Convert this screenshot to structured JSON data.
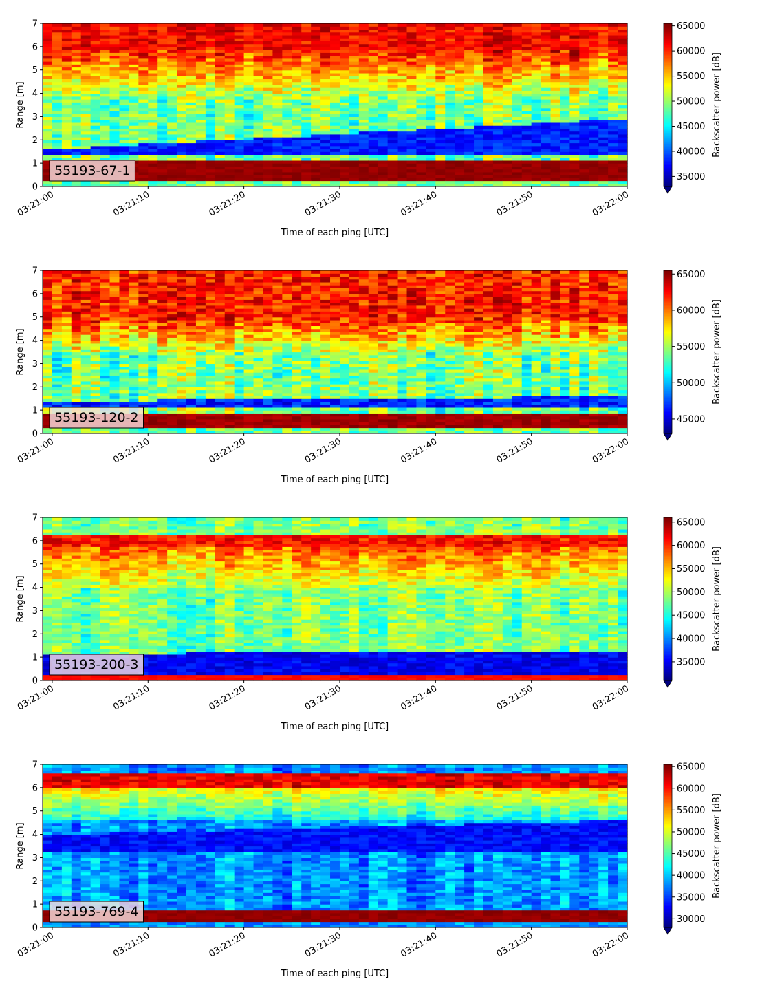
{
  "chart_data": [
    {
      "type": "heatmap",
      "panel_label": "55193-67-1",
      "xlabel": "Time of each ping [UTC]",
      "ylabel": "Range [m]",
      "colorbar_label": "Backscatter power [dB]",
      "colormap": "jet",
      "xlim": [
        "03:20:59",
        "03:22:00"
      ],
      "ylim": [
        0,
        7
      ],
      "x_ticks": [
        "03:21:00",
        "03:21:10",
        "03:21:20",
        "03:21:30",
        "03:21:40",
        "03:21:50",
        "03:22:00"
      ],
      "y_ticks": [
        0,
        1,
        2,
        3,
        4,
        5,
        6,
        7
      ],
      "color_range": [
        33000,
        65500
      ],
      "colorbar_ticks": [
        35000,
        40000,
        45000,
        50000,
        55000,
        60000,
        65000
      ],
      "colorbar_extend": "min",
      "pattern": {
        "bottom_band": [
          0.2,
          1.15,
          65500
        ],
        "upper_band": [
          5.9,
          7.0,
          64000
        ],
        "dark_layer": {
          "lower_m": 1.4,
          "upper_start_m": 1.6,
          "upper_end_m": 2.9,
          "value": 36000
        },
        "mid_mean": 49000,
        "mid_noise": 7000,
        "top_gradient": [
          3.8,
          5.9,
          50000,
          61000
        ]
      }
    },
    {
      "type": "heatmap",
      "panel_label": "55193-120-2",
      "xlabel": "Time of each ping [UTC]",
      "ylabel": "Range [m]",
      "colorbar_label": "Backscatter power [dB]",
      "colormap": "jet",
      "xlim": [
        "03:20:59",
        "03:22:00"
      ],
      "ylim": [
        0,
        7
      ],
      "x_ticks": [
        "03:21:00",
        "03:21:10",
        "03:21:20",
        "03:21:30",
        "03:21:40",
        "03:21:50",
        "03:22:00"
      ],
      "y_ticks": [
        0,
        1,
        2,
        3,
        4,
        5,
        6,
        7
      ],
      "color_range": [
        43000,
        65500
      ],
      "colorbar_ticks": [
        45000,
        50000,
        55000,
        60000,
        65000
      ],
      "colorbar_extend": "min",
      "pattern": {
        "bottom_band": [
          0.2,
          0.85,
          65500
        ],
        "upper_band": [
          5.0,
          7.0,
          64500
        ],
        "dark_layer": {
          "lower_m": 1.15,
          "upper_start_m": 1.4,
          "upper_end_m": 1.6,
          "value": 44500
        },
        "mid_mean": 54000,
        "mid_noise": 5500,
        "top_gradient": [
          3.5,
          5.0,
          55000,
          62000
        ]
      }
    },
    {
      "type": "heatmap",
      "panel_label": "55193-200-3",
      "xlabel": "Time of each ping [UTC]",
      "ylabel": "Range [m]",
      "colorbar_label": "Backscatter power [dB]",
      "colormap": "jet",
      "xlim": [
        "03:20:59",
        "03:22:00"
      ],
      "ylim": [
        0,
        7
      ],
      "x_ticks": [
        "03:21:00",
        "03:21:10",
        "03:21:20",
        "03:21:30",
        "03:21:40",
        "03:21:50",
        "03:22:00"
      ],
      "y_ticks": [
        0,
        1,
        2,
        3,
        4,
        5,
        6,
        7
      ],
      "color_range": [
        31000,
        66000
      ],
      "colorbar_ticks": [
        35000,
        40000,
        45000,
        50000,
        55000,
        60000,
        65000
      ],
      "colorbar_extend": "min",
      "pattern": {
        "bottom_band": [
          0.0,
          0.3,
          62000
        ],
        "upper_band": [
          5.7,
          6.3,
          63500
        ],
        "dark_layer": {
          "lower_m": 0.3,
          "upper_start_m": 1.15,
          "upper_end_m": 1.3,
          "value": 33000
        },
        "mid_mean": 48000,
        "mid_noise": 6500,
        "top_gradient": [
          4.0,
          5.7,
          50000,
          58000
        ]
      }
    },
    {
      "type": "heatmap",
      "panel_label": "55193-769-4",
      "xlabel": "Time of each ping [UTC]",
      "ylabel": "Range [m]",
      "colorbar_label": "Backscatter power [dB]",
      "colormap": "jet",
      "xlim": [
        "03:20:59",
        "03:22:00"
      ],
      "ylim": [
        0,
        7
      ],
      "x_ticks": [
        "03:21:00",
        "03:21:10",
        "03:21:20",
        "03:21:30",
        "03:21:40",
        "03:21:50",
        "03:22:00"
      ],
      "y_ticks": [
        0,
        1,
        2,
        3,
        4,
        5,
        6,
        7
      ],
      "color_range": [
        28000,
        65500
      ],
      "colorbar_ticks": [
        30000,
        35000,
        40000,
        45000,
        50000,
        55000,
        60000,
        65000
      ],
      "colorbar_extend": "min",
      "pattern": {
        "bottom_band": [
          0.2,
          0.7,
          65500
        ],
        "upper_band": [
          6.0,
          6.6,
          64000
        ],
        "dark_layer": {
          "lower_m": 3.2,
          "upper_start_m": 4.0,
          "upper_end_m": 4.6,
          "value": 31000
        },
        "mid_mean": 38000,
        "mid_noise": 6000,
        "top_gradient": [
          4.6,
          6.0,
          42000,
          52000
        ]
      }
    }
  ]
}
